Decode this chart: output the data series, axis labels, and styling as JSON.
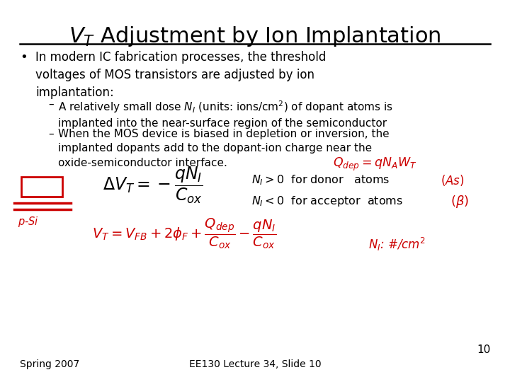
{
  "title_vt": "$V_T$",
  "title_rest": " Adjustment by Ion Implantation",
  "bullet": "In modern IC fabrication processes, the threshold\nvoltages of MOS transistors are adjusted by ion\nimplantation:",
  "dash1": "A relatively small dose $N_I$ (units: ions/cm$^2$) of dopant atoms is\nimplanted into the near-surface region of the semiconductor",
  "dash2": "When the MOS device is biased in depletion or inversion, the\nimplanted dopants add to the dopant-ion charge near the\noxide-semiconductor interface.",
  "footer_left": "Spring 2007",
  "footer_center": "EE130 Lecture 34, Slide 10",
  "slide_number": "10",
  "bg_color": "#ffffff",
  "text_color": "#000000",
  "red_color": "#cc0000",
  "title_fontsize": 22,
  "body_fontsize": 12,
  "small_fontsize": 11,
  "footer_fontsize": 10
}
